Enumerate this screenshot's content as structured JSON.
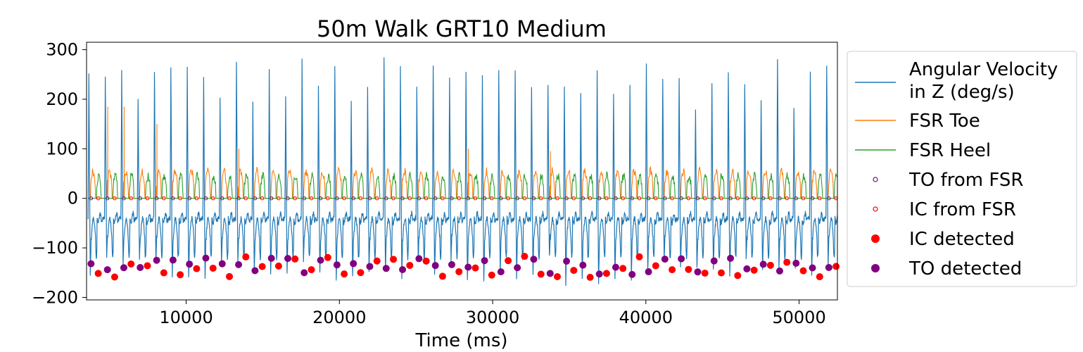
{
  "chart_data": {
    "type": "line",
    "title": "50m Walk GRT10 Medium",
    "xlabel": "Time (ms)",
    "ylabel": "",
    "xlim": [
      3500,
      52500
    ],
    "ylim": [
      -205,
      315
    ],
    "x_ticks": [
      10000,
      20000,
      30000,
      40000,
      50000
    ],
    "x_tick_labels": [
      "10000",
      "20000",
      "30000",
      "40000",
      "50000"
    ],
    "y_ticks": [
      -200,
      -100,
      0,
      100,
      200,
      300
    ],
    "y_tick_labels": [
      "−200",
      "−100",
      "0",
      "100",
      "200",
      "300"
    ],
    "grid": false,
    "legend_position": "right, outside plot",
    "colors": {
      "angular_velocity": "#1f77b4",
      "fsr_toe": "#ff7f0e",
      "fsr_heel": "#2ca02c",
      "to_from_fsr": "#800080",
      "ic_from_fsr": "#ff0000",
      "ic_detected": "#ff0000",
      "to_detected": "#800080"
    },
    "gait": {
      "start_ms": 3600,
      "end_ms": 52500,
      "step_period_ms": 1070,
      "peak_velocity_range": [
        180,
        290
      ],
      "trough_velocity_range": [
        -180,
        -120
      ],
      "toe_spike_values": [
        185,
        185,
        150,
        100,
        100,
        95
      ],
      "fsr_typical_range": [
        0,
        60
      ]
    },
    "series": [
      {
        "name": "Angular Velocity\n in Z (deg/s)",
        "marker": "line",
        "legend_lines": [
          "Angular Velocity",
          " in Z (deg/s)"
        ]
      },
      {
        "name": "FSR Toe",
        "marker": "line"
      },
      {
        "name": "FSR Heel",
        "marker": "line"
      },
      {
        "name": "TO from FSR",
        "marker": "hollow-circle",
        "y_value": 0
      },
      {
        "name": "IC from FSR",
        "marker": "hollow-circle",
        "y_value": 0
      },
      {
        "name": "IC detected",
        "marker": "filled-circle",
        "y_value_range": [
          -160,
          -108
        ]
      },
      {
        "name": "TO detected",
        "marker": "filled-circle",
        "y_value_range": [
          -160,
          -115
        ]
      }
    ]
  }
}
